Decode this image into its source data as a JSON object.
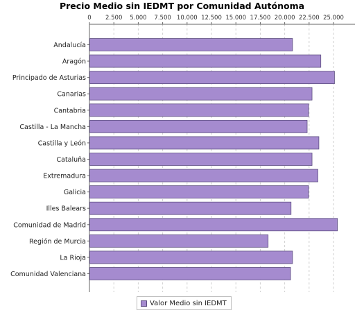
{
  "chart_data": {
    "type": "bar",
    "orientation": "horizontal",
    "title": "Precio Medio sin IEDMT por Comunidad Autónoma",
    "xlabel": "",
    "ylabel": "",
    "categories": [
      "Andalucía",
      "Aragón",
      "Principado de Asturias",
      "Canarias",
      "Cantabria",
      "Castilla - La Mancha",
      "Castilla y León",
      "Cataluña",
      "Extremadura",
      "Galicia",
      "Illes Balears",
      "Comunidad de Madrid",
      "Región de Murcia",
      "La Rioja",
      "Comunidad Valenciana"
    ],
    "series": [
      {
        "name": "Valor Medio sin IEDMT",
        "values": [
          20800,
          23700,
          25100,
          22800,
          22450,
          22300,
          23500,
          22800,
          23400,
          22450,
          20650,
          25400,
          18300,
          20800,
          20600
        ]
      }
    ],
    "xlim": [
      0,
      27200
    ],
    "ticks": [
      0,
      2500,
      5000,
      7500,
      10000,
      12500,
      15000,
      17500,
      20000,
      22500,
      25000
    ],
    "tick_labels": [
      "0",
      "2.500",
      "5.000",
      "7.500",
      "10.000",
      "12.500",
      "15.000",
      "17.500",
      "20.000",
      "22.500",
      "25.000"
    ],
    "axis_position": "top",
    "grid": true,
    "legend_position": "bottom-center",
    "colors": {
      "bar_fill": "#a58bcf",
      "bar_border": "#5d4e80",
      "gridline": "#cfcfcf",
      "axis": "#666666"
    }
  }
}
